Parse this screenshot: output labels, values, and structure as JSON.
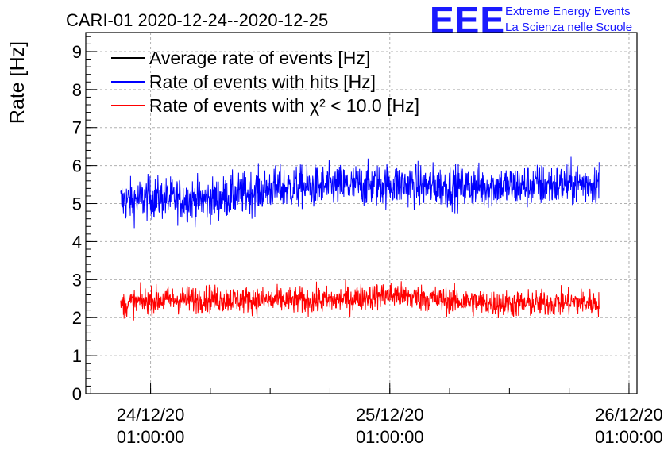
{
  "header": {
    "title": "CARI-01 2020-12-24--2020-12-25",
    "logo": "EEE",
    "logo_line1": "Extreme Energy Events",
    "logo_line2": "La Scienza nelle Scuole"
  },
  "chart_data": {
    "type": "line",
    "title": "CARI-01 2020-12-24--2020-12-25",
    "ylabel": "Rate [Hz]",
    "xlabel": "",
    "ylim": [
      0,
      9.5
    ],
    "yticks": [
      0,
      1,
      2,
      3,
      4,
      5,
      6,
      7,
      8,
      9
    ],
    "x_tick_labels": [
      {
        "date": "24/12/20",
        "time": "01:00:00",
        "hours": 0
      },
      {
        "date": "25/12/20",
        "time": "01:00:00",
        "hours": 24
      },
      {
        "date": "26/12/20",
        "time": "01:00:00",
        "hours": 48
      }
    ],
    "xlim_hours": [
      -6.5,
      48.8
    ],
    "data_range_hours": [
      -3,
      45
    ],
    "grid": true,
    "legend_position": "top-left",
    "series": [
      {
        "name": "Average rate of events [Hz]",
        "color": "#000000",
        "points": []
      },
      {
        "name": "Rate of events with hits [Hz]",
        "color": "#0000ff",
        "mean_hz": 5.3,
        "noise_hz": 0.35,
        "trend_hours": [
          -3,
          0,
          6,
          12,
          18,
          24,
          30,
          36,
          42,
          45
        ],
        "trend_hz": [
          5.05,
          5.15,
          5.1,
          5.4,
          5.45,
          5.5,
          5.45,
          5.45,
          5.5,
          5.55
        ]
      },
      {
        "name": "Rate of events with χ² < 10.0 [Hz]",
        "color": "#ff0000",
        "mean_hz": 2.45,
        "noise_hz": 0.22,
        "trend_hours": [
          -3,
          0,
          6,
          12,
          18,
          24,
          30,
          36,
          42,
          45
        ],
        "trend_hz": [
          2.35,
          2.45,
          2.5,
          2.45,
          2.45,
          2.6,
          2.45,
          2.35,
          2.4,
          2.4
        ]
      }
    ]
  }
}
